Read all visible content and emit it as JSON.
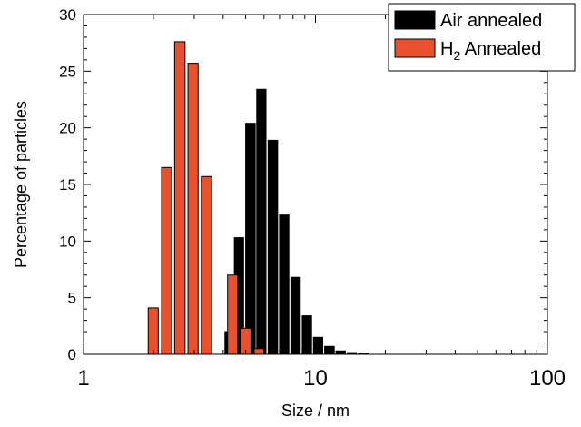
{
  "chart_data": {
    "type": "bar",
    "xscale": "log",
    "xlim": [
      1,
      100
    ],
    "ylim": [
      0,
      30
    ],
    "xlabel": "Size / nm",
    "ylabel": "Percentage of particles",
    "x_ticks": [
      "1",
      "10",
      "100"
    ],
    "y_ticks": [
      "0",
      "5",
      "10",
      "15",
      "20",
      "25",
      "30"
    ],
    "legend": {
      "placement": "top-right",
      "entries": [
        {
          "name": "Air annealed",
          "color": "#000000"
        },
        {
          "name": "H",
          "subscript": "2",
          "name_rest": " Annealed",
          "color": "#e8502e"
        }
      ]
    },
    "series": [
      {
        "name": "Air annealed",
        "color": "#000000",
        "bins": [
          {
            "x_start": 4.07,
            "x_end": 4.4,
            "value": 2.0
          },
          {
            "x_start": 4.47,
            "x_end": 4.9,
            "value": 10.3
          },
          {
            "x_start": 5.0,
            "x_end": 5.5,
            "value": 20.4
          },
          {
            "x_start": 5.58,
            "x_end": 6.12,
            "value": 23.4
          },
          {
            "x_start": 6.25,
            "x_end": 6.87,
            "value": 18.9
          },
          {
            "x_start": 7.0,
            "x_end": 7.68,
            "value": 12.3
          },
          {
            "x_start": 7.83,
            "x_end": 8.6,
            "value": 6.8
          },
          {
            "x_start": 8.77,
            "x_end": 9.62,
            "value": 3.4
          },
          {
            "x_start": 9.8,
            "x_end": 10.75,
            "value": 1.5
          },
          {
            "x_start": 10.95,
            "x_end": 12.05,
            "value": 0.7
          },
          {
            "x_start": 12.25,
            "x_end": 13.45,
            "value": 0.3
          },
          {
            "x_start": 13.7,
            "x_end": 15.05,
            "value": 0.15
          },
          {
            "x_start": 15.3,
            "x_end": 16.9,
            "value": 0.1
          }
        ]
      },
      {
        "name": "H2 Annealed",
        "color": "#e8502e",
        "bins": [
          {
            "x_start": 1.9,
            "x_end": 2.1,
            "value": 4.1
          },
          {
            "x_start": 2.17,
            "x_end": 2.4,
            "value": 16.5
          },
          {
            "x_start": 2.47,
            "x_end": 2.74,
            "value": 27.6
          },
          {
            "x_start": 2.82,
            "x_end": 3.12,
            "value": 25.7
          },
          {
            "x_start": 3.22,
            "x_end": 3.57,
            "value": 15.7
          },
          {
            "x_start": 3.67,
            "x_end": 4.06,
            "value": 0
          },
          {
            "x_start": 4.18,
            "x_end": 4.62,
            "value": 7.0
          },
          {
            "x_start": 4.77,
            "x_end": 5.27,
            "value": 2.3
          },
          {
            "x_start": 5.44,
            "x_end": 6.0,
            "value": 0.5
          }
        ]
      }
    ]
  }
}
